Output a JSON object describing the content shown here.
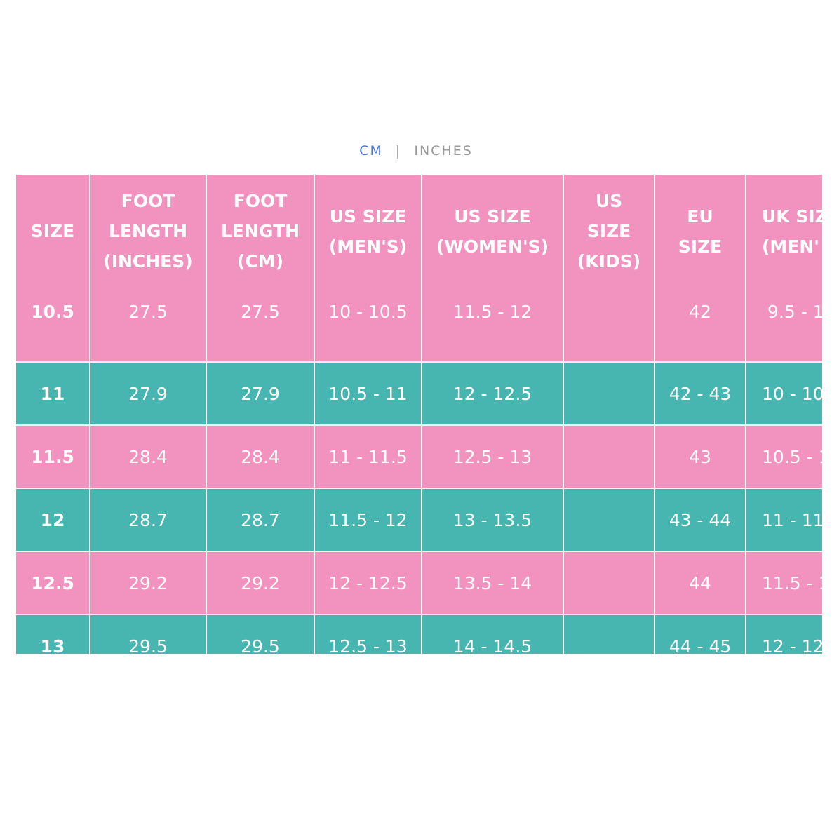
{
  "unit_toggle": {
    "cm": "CM",
    "separator": "|",
    "inches": "INCHES"
  },
  "table": {
    "headers": [
      [
        "SIZE"
      ],
      [
        "FOOT",
        "LENGTH",
        "(INCHES)"
      ],
      [
        "FOOT",
        "LENGTH",
        "(CM)"
      ],
      [
        "US SIZE",
        "(MEN'S)"
      ],
      [
        "US SIZE",
        "(WOMEN'S)"
      ],
      [
        "US",
        "SIZE",
        "(KIDS)"
      ],
      [
        "EU",
        "SIZE"
      ],
      [
        "UK SIZ",
        "(MEN'"
      ]
    ],
    "rows": [
      [
        "10.5",
        "27.5",
        "27.5",
        "10 - 10.5",
        "11.5 - 12",
        "",
        "42",
        "9.5 - 1"
      ],
      [
        "11",
        "27.9",
        "27.9",
        "10.5 - 11",
        "12 - 12.5",
        "",
        "42 - 43",
        "10 - 10"
      ],
      [
        "11.5",
        "28.4",
        "28.4",
        "11 - 11.5",
        "12.5 - 13",
        "",
        "43",
        "10.5 - 1"
      ],
      [
        "12",
        "28.7",
        "28.7",
        "11.5 - 12",
        "13 - 13.5",
        "",
        "43 - 44",
        "11 - 11"
      ],
      [
        "12.5",
        "29.2",
        "29.2",
        "12 - 12.5",
        "13.5 - 14",
        "",
        "44",
        "11.5 - 1"
      ],
      [
        "13",
        "29.5",
        "29.5",
        "12.5 - 13",
        "14 - 14.5",
        "",
        "44 - 45",
        "12 - 12"
      ]
    ]
  },
  "colors": {
    "pink": "#f292bf",
    "teal": "#47b5b0",
    "accent_blue": "#4d7ae0"
  }
}
